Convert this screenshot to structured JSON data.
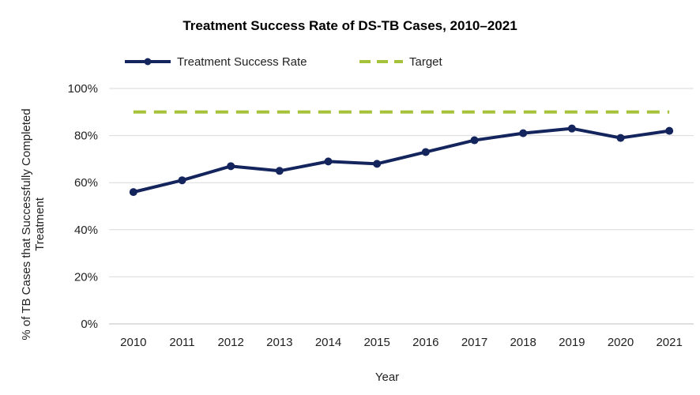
{
  "chart_data": {
    "type": "line",
    "title": "Treatment Success Rate of DS-TB Cases, 2010–2021",
    "xlabel": "Year",
    "ylabel_lines": [
      "% of TB Cases that Successfully Completed",
      "Treatment"
    ],
    "categories": [
      "2010",
      "2011",
      "2012",
      "2013",
      "2014",
      "2015",
      "2016",
      "2017",
      "2018",
      "2019",
      "2020",
      "2021"
    ],
    "ylim": [
      0,
      100
    ],
    "yticks": [
      0,
      20,
      40,
      60,
      80,
      100
    ],
    "ytick_labels": [
      "0%",
      "20%",
      "40%",
      "60%",
      "80%",
      "100%"
    ],
    "grid": true,
    "legend_position": "top-left",
    "series": [
      {
        "name": "Treatment Success Rate",
        "color": "#14245c",
        "style": "solid-with-markers",
        "values": [
          56,
          61,
          67,
          65,
          69,
          68,
          73,
          78,
          81,
          83,
          79,
          82
        ]
      },
      {
        "name": "Target",
        "color": "#a6c13a",
        "style": "dashed",
        "values": [
          90,
          90,
          90,
          90,
          90,
          90,
          90,
          90,
          90,
          90,
          90,
          90
        ]
      }
    ]
  }
}
